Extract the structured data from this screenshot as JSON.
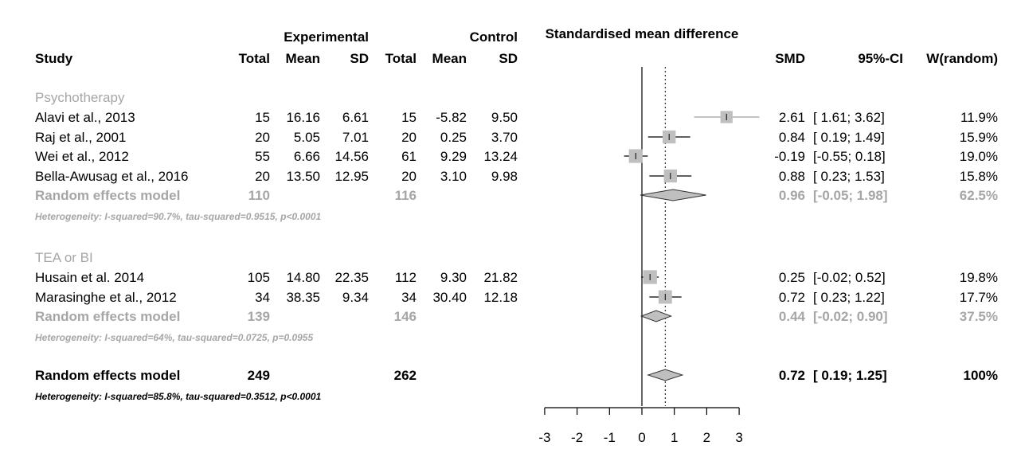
{
  "chart_data": {
    "type": "forest",
    "header": {
      "group_experimental": "Experimental",
      "group_control": "Control",
      "plot_title": "Standardised mean difference",
      "col_study": "Study",
      "col_total_e": "Total",
      "col_mean_e": "Mean",
      "col_sd_e": "SD",
      "col_total_c": "Total",
      "col_mean_c": "Mean",
      "col_sd_c": "SD",
      "col_smd": "SMD",
      "col_ci": "95%-CI",
      "col_weight": "W(random)"
    },
    "xlim": [
      -3,
      3
    ],
    "x_ticks": [
      -3,
      -2,
      -1,
      0,
      1,
      2,
      3
    ],
    "x_tick_labels": [
      "-3",
      "-2",
      "-1",
      "0",
      "1",
      "2",
      "3"
    ],
    "reference_line": 0,
    "overall_line": 0.72,
    "subgroups": [
      {
        "name": "Psychotherapy",
        "studies": [
          {
            "study": "Alavi et al., 2013",
            "n_e": "15",
            "mean_e": "16.16",
            "sd_e": "6.61",
            "n_c": "15",
            "mean_c": "-5.82",
            "sd_c": "9.50",
            "smd": 2.61,
            "lower": 1.61,
            "upper": 3.62,
            "weight": 11.9,
            "smd_text": "2.61",
            "ci_text": "[ 1.61; 3.62]",
            "w_text": "11.9%"
          },
          {
            "study": "Raj et al., 2001",
            "n_e": "20",
            "mean_e": "5.05",
            "sd_e": "7.01",
            "n_c": "20",
            "mean_c": "0.25",
            "sd_c": "3.70",
            "smd": 0.84,
            "lower": 0.19,
            "upper": 1.49,
            "weight": 15.9,
            "smd_text": "0.84",
            "ci_text": "[ 0.19; 1.49]",
            "w_text": "15.9%"
          },
          {
            "study": "Wei et al., 2012",
            "n_e": "55",
            "mean_e": "6.66",
            "sd_e": "14.56",
            "n_c": "61",
            "mean_c": "9.29",
            "sd_c": "13.24",
            "smd": -0.19,
            "lower": -0.55,
            "upper": 0.18,
            "weight": 19.0,
            "smd_text": "-0.19",
            "ci_text": "[-0.55; 0.18]",
            "w_text": "19.0%"
          },
          {
            "study": "Bella-Awusag et al., 2016",
            "n_e": "20",
            "mean_e": "13.50",
            "sd_e": "12.95",
            "n_c": "20",
            "mean_c": "3.10",
            "sd_c": "9.98",
            "smd": 0.88,
            "lower": 0.23,
            "upper": 1.53,
            "weight": 15.8,
            "smd_text": "0.88",
            "ci_text": "[ 0.23; 1.53]",
            "w_text": "15.8%"
          }
        ],
        "pooled": {
          "label": "Random effects model",
          "n_e": "110",
          "n_c": "116",
          "smd": 0.96,
          "lower": -0.05,
          "upper": 1.98,
          "smd_text": "0.96",
          "ci_text": "[-0.05; 1.98]",
          "w_text": "62.5%"
        },
        "heterogeneity": "Heterogeneity: I-squared=90.7%, tau-squared=0.9515, p<0.0001"
      },
      {
        "name": "TEA or BI",
        "studies": [
          {
            "study": "Husain et al. 2014",
            "n_e": "105",
            "mean_e": "14.80",
            "sd_e": "22.35",
            "n_c": "112",
            "mean_c": "9.30",
            "sd_c": "21.82",
            "smd": 0.25,
            "lower": -0.02,
            "upper": 0.52,
            "weight": 19.8,
            "smd_text": "0.25",
            "ci_text": "[-0.02; 0.52]",
            "w_text": "19.8%"
          },
          {
            "study": "Marasinghe et al., 2012",
            "n_e": "34",
            "mean_e": "38.35",
            "sd_e": "9.34",
            "n_c": "34",
            "mean_c": "30.40",
            "sd_c": "12.18",
            "smd": 0.72,
            "lower": 0.23,
            "upper": 1.22,
            "weight": 17.7,
            "smd_text": "0.72",
            "ci_text": "[ 0.23; 1.22]",
            "w_text": "17.7%"
          }
        ],
        "pooled": {
          "label": "Random effects model",
          "n_e": "139",
          "n_c": "146",
          "smd": 0.44,
          "lower": -0.02,
          "upper": 0.9,
          "smd_text": "0.44",
          "ci_text": "[-0.02; 0.90]",
          "w_text": "37.5%"
        },
        "heterogeneity": "Heterogeneity: I-squared=64%, tau-squared=0.0725, p=0.0955"
      }
    ],
    "overall": {
      "label": "Random effects model",
      "n_e": "249",
      "n_c": "262",
      "smd": 0.72,
      "lower": 0.19,
      "upper": 1.25,
      "smd_text": "0.72",
      "ci_text": "[ 0.19; 1.25]",
      "w_text": "100%",
      "heterogeneity": "Heterogeneity: I-squared=85.8%, tau-squared=0.3512, p<0.0001"
    },
    "colors": {
      "text": "#000000",
      "subgroup_text": "#a6a6a6",
      "square": "#bfbfbf",
      "diamond_fill": "#bfbfbf",
      "line": "#000000",
      "ci_line_alt": "#9e9e9e"
    }
  }
}
